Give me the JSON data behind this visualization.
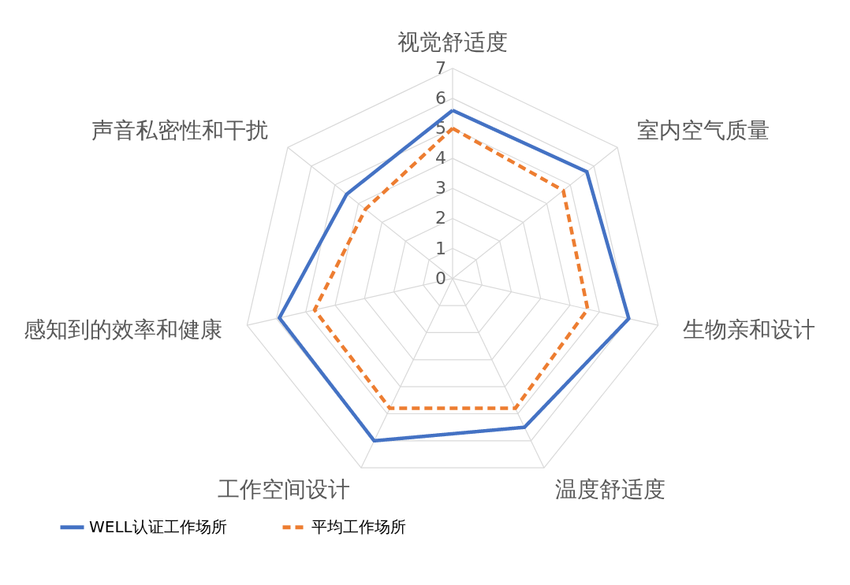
{
  "chart_data": {
    "type": "radar",
    "categories": [
      "视觉舒适度",
      "室内空气质量",
      "生物亲和设计",
      "温度舒适度",
      "工作空间设计",
      "感知到的效率和健康",
      "声音私密性和干扰"
    ],
    "series": [
      {
        "name": "WELL认证工作场所",
        "color": "#4472c4",
        "line_style": "solid",
        "values": [
          5.6,
          5.7,
          6.0,
          5.5,
          6.0,
          5.9,
          4.5
        ]
      },
      {
        "name": "平均工作场所",
        "color": "#ed7d31",
        "line_style": "dashed",
        "values": [
          5.0,
          4.7,
          4.6,
          4.8,
          4.8,
          4.7,
          3.7
        ]
      }
    ],
    "ylim": [
      0,
      7
    ],
    "yticks": [
      0,
      1,
      2,
      3,
      4,
      5,
      6,
      7
    ],
    "grid": true,
    "legend": "bottom"
  }
}
